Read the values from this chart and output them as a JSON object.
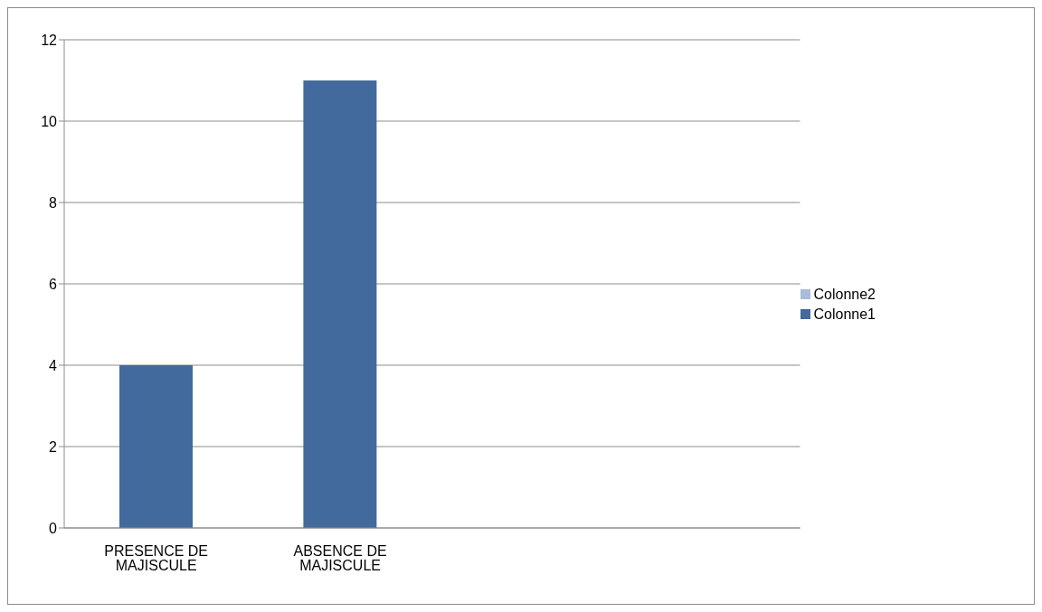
{
  "chart_data": {
    "type": "bar",
    "stacked": true,
    "categories": [
      "PRESENCE DE MAJISCULE",
      "ABSENCE DE MAJISCULE",
      null,
      null
    ],
    "series": [
      {
        "name": "Colonne1",
        "color": "#426a9c",
        "values": [
          4,
          11,
          null,
          null
        ]
      },
      {
        "name": "Colonne2",
        "color": "#a9bcd8",
        "values": [
          null,
          null,
          null,
          null
        ]
      }
    ],
    "ylim": [
      0,
      12
    ],
    "yticks": [
      0,
      2,
      4,
      6,
      8,
      10,
      12
    ],
    "grid": "y",
    "legend": "right"
  }
}
